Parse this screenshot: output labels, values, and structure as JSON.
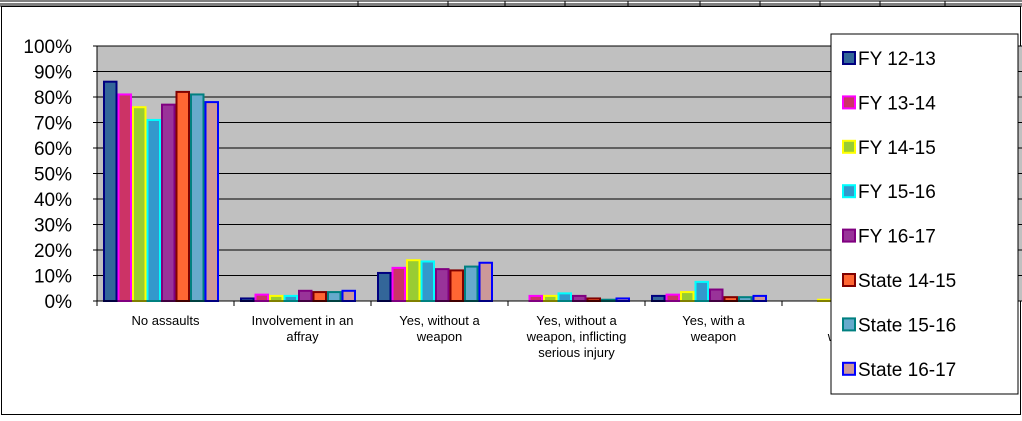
{
  "chart_data": {
    "type": "bar",
    "categories": [
      "No assaults",
      "Involvement in an affray",
      "Yes, without a weapon",
      "Yes, without a weapon, inflicting serious injury",
      "Yes, with a weapon",
      "Yes, with a weapon, inflicting serious injury"
    ],
    "category_lines": [
      [
        "No assaults"
      ],
      [
        "Involvement in an",
        "affray"
      ],
      [
        "Yes, without a",
        "weapon"
      ],
      [
        "Yes, without a",
        "weapon, inflicting",
        "serious injury"
      ],
      [
        "Yes, with a",
        "weapon"
      ],
      [
        "Yes",
        "weapon",
        "seriou"
      ]
    ],
    "series": [
      {
        "name": "FY 12-13",
        "color": "#336699",
        "border": "#000080",
        "values": [
          86,
          1,
          11,
          0,
          2,
          0
        ]
      },
      {
        "name": "FY 13-14",
        "color": "#cc3366",
        "border": "#ff00ff",
        "values": [
          81,
          2.5,
          13,
          2,
          2.5,
          0
        ]
      },
      {
        "name": "FY 14-15",
        "color": "#99cc33",
        "border": "#ffff00",
        "values": [
          76,
          2,
          16,
          2,
          3.5,
          0.5
        ]
      },
      {
        "name": "FY 15-16",
        "color": "#3399cc",
        "border": "#00ffff",
        "values": [
          71,
          2,
          15.5,
          3,
          7.5,
          0
        ]
      },
      {
        "name": "FY 16-17",
        "color": "#993399",
        "border": "#800080",
        "values": [
          77,
          4,
          12.5,
          2,
          4.5,
          0
        ]
      },
      {
        "name": "State 14-15",
        "color": "#ff6633",
        "border": "#800000",
        "values": [
          82,
          3.5,
          12,
          1,
          1.5,
          0
        ]
      },
      {
        "name": "State 15-16",
        "color": "#66aacc",
        "border": "#008080",
        "values": [
          81,
          3.5,
          13.5,
          0.5,
          1.5,
          0
        ]
      },
      {
        "name": "State 16-17",
        "color": "#cc9999",
        "border": "#0000ff",
        "values": [
          78,
          4,
          15,
          1,
          2,
          0
        ]
      }
    ],
    "yticks": [
      "0%",
      "10%",
      "20%",
      "30%",
      "40%",
      "50%",
      "60%",
      "70%",
      "80%",
      "90%",
      "100%"
    ],
    "ylim": [
      0,
      100
    ],
    "title": "",
    "xlabel": "",
    "ylabel": "",
    "grid": true,
    "legend": "right",
    "plot_background": "#c0c0c0"
  }
}
